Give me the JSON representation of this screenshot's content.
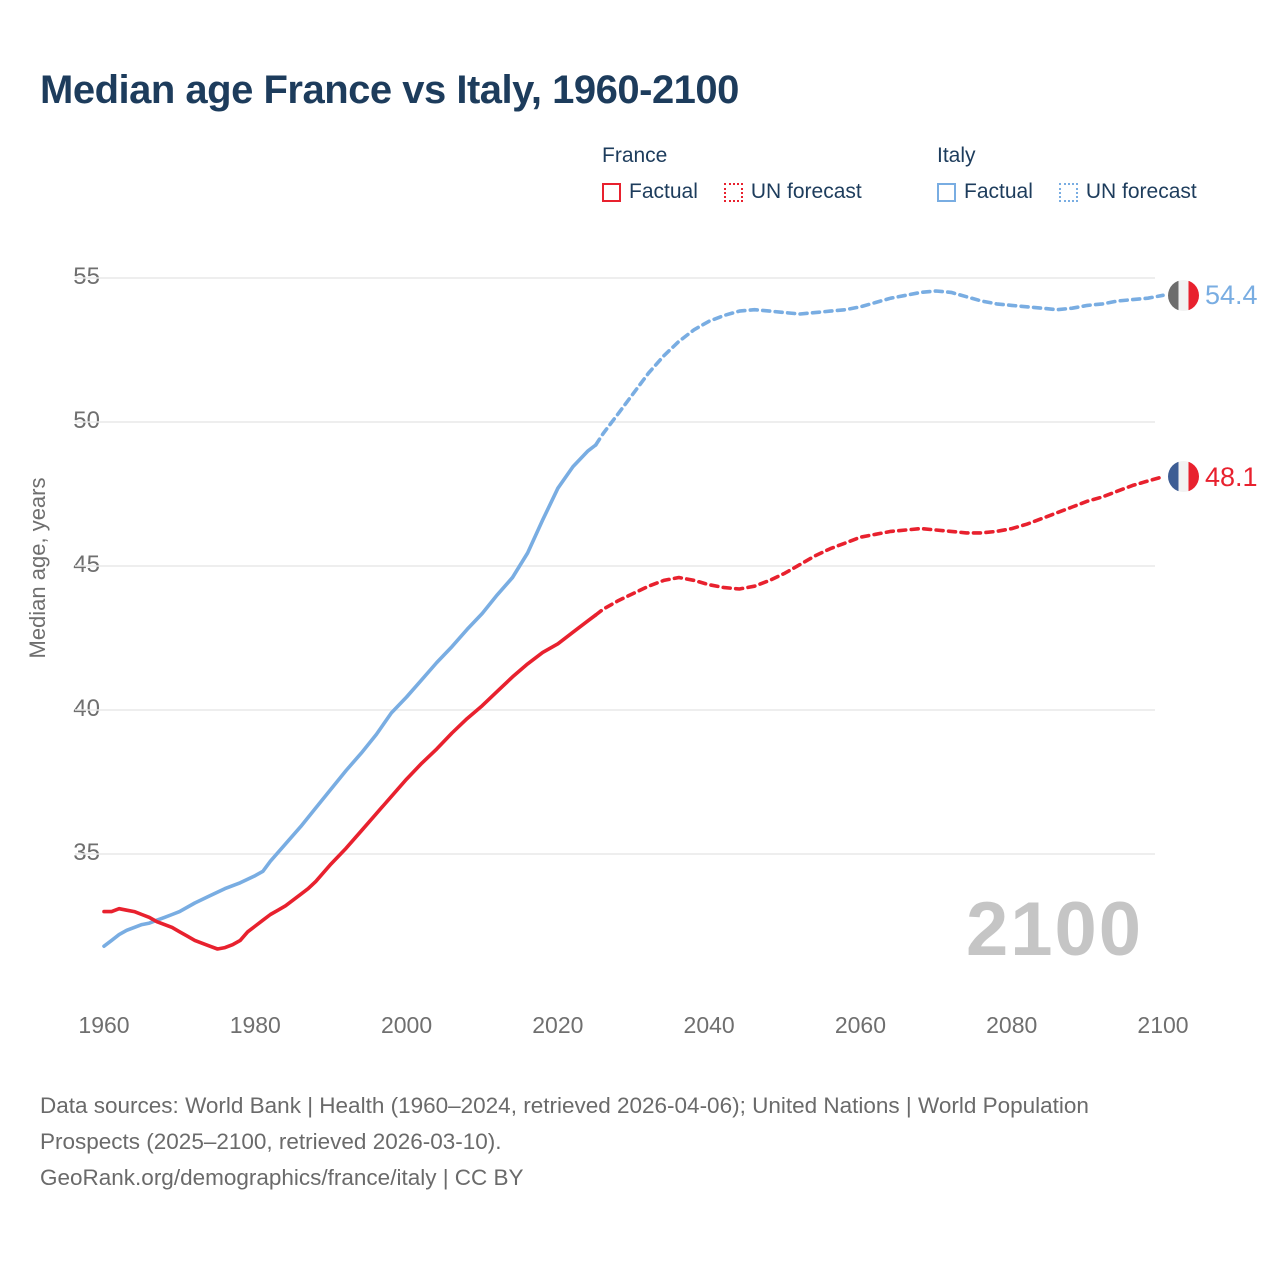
{
  "header": {
    "title": "Median age France vs Italy, 1960-2100"
  },
  "legend": {
    "groups": [
      {
        "label": "France",
        "color": "#e8212e",
        "items": [
          {
            "label": "Factual",
            "style": "solid"
          },
          {
            "label": "UN forecast",
            "style": "dotted"
          }
        ]
      },
      {
        "label": "Italy",
        "color": "#79ade2",
        "items": [
          {
            "label": "Factual",
            "style": "solid"
          },
          {
            "label": "UN forecast",
            "style": "dotted"
          }
        ]
      }
    ]
  },
  "chart_data": {
    "type": "line",
    "title": "Median age France vs Italy, 1960-2100",
    "xlabel": "",
    "ylabel": "Median age, years",
    "x_ticks": [
      1960,
      1980,
      2000,
      2020,
      2040,
      2060,
      2080,
      2100
    ],
    "y_ticks": [
      35,
      40,
      45,
      50,
      55
    ],
    "x_range": [
      1960,
      2100
    ],
    "y_range": [
      31,
      56
    ],
    "grid": "horizontal-only",
    "legend_position": "top",
    "series": [
      {
        "name": "Italy Factual",
        "color": "#79ade2",
        "style": "solid",
        "points": [
          [
            1960,
            31.8
          ],
          [
            1961,
            32.0
          ],
          [
            1962,
            32.2
          ],
          [
            1963,
            32.35
          ],
          [
            1964,
            32.45
          ],
          [
            1965,
            32.55
          ],
          [
            1966,
            32.6
          ],
          [
            1967,
            32.7
          ],
          [
            1968,
            32.8
          ],
          [
            1969,
            32.9
          ],
          [
            1970,
            33.0
          ],
          [
            1972,
            33.3
          ],
          [
            1974,
            33.55
          ],
          [
            1976,
            33.8
          ],
          [
            1978,
            34.0
          ],
          [
            1980,
            34.25
          ],
          [
            1981,
            34.4
          ],
          [
            1982,
            34.75
          ],
          [
            1984,
            35.35
          ],
          [
            1986,
            35.95
          ],
          [
            1988,
            36.6
          ],
          [
            1990,
            37.25
          ],
          [
            1992,
            37.9
          ],
          [
            1994,
            38.5
          ],
          [
            1996,
            39.15
          ],
          [
            1998,
            39.9
          ],
          [
            2000,
            40.45
          ],
          [
            2002,
            41.05
          ],
          [
            2004,
            41.65
          ],
          [
            2006,
            42.2
          ],
          [
            2008,
            42.8
          ],
          [
            2010,
            43.35
          ],
          [
            2012,
            44.0
          ],
          [
            2014,
            44.6
          ],
          [
            2016,
            45.45
          ],
          [
            2018,
            46.6
          ],
          [
            2020,
            47.7
          ],
          [
            2022,
            48.45
          ],
          [
            2024,
            49.0
          ],
          [
            2025,
            49.2
          ]
        ]
      },
      {
        "name": "Italy UN forecast",
        "color": "#79ade2",
        "style": "dashed",
        "points": [
          [
            2025,
            49.2
          ],
          [
            2026,
            49.6
          ],
          [
            2028,
            50.3
          ],
          [
            2030,
            51.0
          ],
          [
            2032,
            51.7
          ],
          [
            2034,
            52.3
          ],
          [
            2036,
            52.8
          ],
          [
            2038,
            53.2
          ],
          [
            2040,
            53.5
          ],
          [
            2042,
            53.7
          ],
          [
            2044,
            53.85
          ],
          [
            2046,
            53.9
          ],
          [
            2048,
            53.85
          ],
          [
            2050,
            53.8
          ],
          [
            2052,
            53.75
          ],
          [
            2054,
            53.8
          ],
          [
            2056,
            53.85
          ],
          [
            2058,
            53.9
          ],
          [
            2060,
            54.0
          ],
          [
            2062,
            54.15
          ],
          [
            2064,
            54.3
          ],
          [
            2066,
            54.4
          ],
          [
            2068,
            54.5
          ],
          [
            2070,
            54.55
          ],
          [
            2072,
            54.5
          ],
          [
            2074,
            54.35
          ],
          [
            2076,
            54.2
          ],
          [
            2078,
            54.1
          ],
          [
            2080,
            54.05
          ],
          [
            2082,
            54.0
          ],
          [
            2084,
            53.95
          ],
          [
            2086,
            53.9
          ],
          [
            2088,
            53.95
          ],
          [
            2090,
            54.05
          ],
          [
            2092,
            54.1
          ],
          [
            2094,
            54.2
          ],
          [
            2096,
            54.25
          ],
          [
            2098,
            54.3
          ],
          [
            2100,
            54.4
          ]
        ]
      },
      {
        "name": "France Factual",
        "color": "#e8212e",
        "style": "solid",
        "points": [
          [
            1960,
            33.0
          ],
          [
            1961,
            33.0
          ],
          [
            1962,
            33.1
          ],
          [
            1963,
            33.05
          ],
          [
            1964,
            33.0
          ],
          [
            1965,
            32.9
          ],
          [
            1966,
            32.8
          ],
          [
            1967,
            32.65
          ],
          [
            1968,
            32.55
          ],
          [
            1969,
            32.45
          ],
          [
            1970,
            32.3
          ],
          [
            1971,
            32.15
          ],
          [
            1972,
            32.0
          ],
          [
            1973,
            31.9
          ],
          [
            1974,
            31.8
          ],
          [
            1975,
            31.7
          ],
          [
            1976,
            31.75
          ],
          [
            1977,
            31.85
          ],
          [
            1978,
            32.0
          ],
          [
            1979,
            32.3
          ],
          [
            1980,
            32.5
          ],
          [
            1981,
            32.7
          ],
          [
            1982,
            32.9
          ],
          [
            1983,
            33.05
          ],
          [
            1984,
            33.2
          ],
          [
            1985,
            33.4
          ],
          [
            1986,
            33.6
          ],
          [
            1987,
            33.8
          ],
          [
            1988,
            34.05
          ],
          [
            1989,
            34.35
          ],
          [
            1990,
            34.65
          ],
          [
            1992,
            35.2
          ],
          [
            1994,
            35.8
          ],
          [
            1996,
            36.4
          ],
          [
            1998,
            37.0
          ],
          [
            2000,
            37.6
          ],
          [
            2002,
            38.15
          ],
          [
            2004,
            38.65
          ],
          [
            2006,
            39.2
          ],
          [
            2008,
            39.7
          ],
          [
            2010,
            40.15
          ],
          [
            2012,
            40.65
          ],
          [
            2014,
            41.15
          ],
          [
            2016,
            41.6
          ],
          [
            2018,
            42.0
          ],
          [
            2020,
            42.3
          ],
          [
            2022,
            42.7
          ],
          [
            2024,
            43.1
          ],
          [
            2025,
            43.3
          ]
        ]
      },
      {
        "name": "France UN forecast",
        "color": "#e8212e",
        "style": "dashed",
        "points": [
          [
            2025,
            43.3
          ],
          [
            2026,
            43.5
          ],
          [
            2028,
            43.8
          ],
          [
            2030,
            44.05
          ],
          [
            2032,
            44.3
          ],
          [
            2034,
            44.5
          ],
          [
            2036,
            44.6
          ],
          [
            2038,
            44.5
          ],
          [
            2040,
            44.35
          ],
          [
            2042,
            44.25
          ],
          [
            2044,
            44.2
          ],
          [
            2046,
            44.3
          ],
          [
            2048,
            44.5
          ],
          [
            2050,
            44.75
          ],
          [
            2052,
            45.05
          ],
          [
            2054,
            45.35
          ],
          [
            2056,
            45.6
          ],
          [
            2058,
            45.8
          ],
          [
            2060,
            46.0
          ],
          [
            2062,
            46.1
          ],
          [
            2064,
            46.2
          ],
          [
            2066,
            46.25
          ],
          [
            2068,
            46.3
          ],
          [
            2070,
            46.25
          ],
          [
            2072,
            46.2
          ],
          [
            2074,
            46.15
          ],
          [
            2076,
            46.15
          ],
          [
            2078,
            46.2
          ],
          [
            2080,
            46.3
          ],
          [
            2082,
            46.45
          ],
          [
            2084,
            46.65
          ],
          [
            2086,
            46.85
          ],
          [
            2088,
            47.05
          ],
          [
            2090,
            47.25
          ],
          [
            2092,
            47.4
          ],
          [
            2094,
            47.6
          ],
          [
            2096,
            47.8
          ],
          [
            2098,
            47.95
          ],
          [
            2100,
            48.1
          ]
        ]
      }
    ],
    "end_labels": [
      {
        "series": "Italy",
        "value": "54.4",
        "color": "#79ade2",
        "flag_stripes": [
          "#6d6d6d",
          "#f2f2f2",
          "#e8212e"
        ]
      },
      {
        "series": "France",
        "value": "48.1",
        "color": "#e8212e",
        "flag_stripes": [
          "#3d5d94",
          "#f2f2f2",
          "#e8212e"
        ]
      }
    ]
  },
  "watermark": {
    "text": "2100"
  },
  "footer": {
    "sources": "Data sources: World Bank | Health (1960–2024, retrieved 2026-04-06); United Nations | World Population Prospects (2025–2100, retrieved 2026-03-10).",
    "attribution": "GeoRank.org/demographics/france/italy | CC BY"
  },
  "colors": {
    "title": "#1d3c5c",
    "france": "#e8212e",
    "italy": "#79ade2",
    "axis_text": "#6f6f6f",
    "gridline": "#e9e9e9",
    "watermark": "#c5c5c5",
    "footer_text": "#6a6a6a"
  }
}
